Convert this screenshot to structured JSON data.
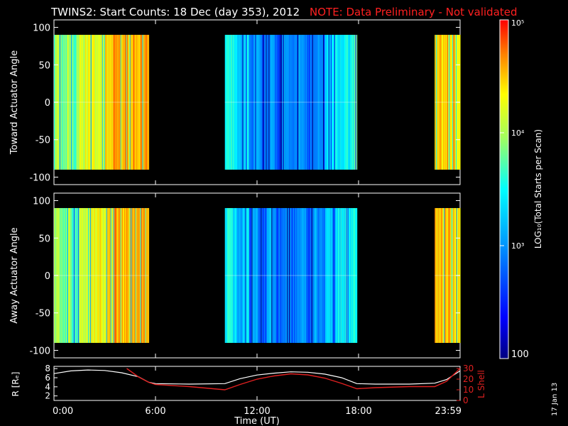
{
  "header": {
    "title": "TWINS2: Start Counts: 18 Dec (day 353), 2012",
    "note": "NOTE: Data Preliminary - Not validated"
  },
  "footer": {
    "date_stamp": "17 Jan 13"
  },
  "colors": {
    "background": "#000000",
    "text": "#ffffff",
    "note": "#ff2020",
    "lshell": "#e02020",
    "radius": "#ffffff"
  },
  "chart_data": [
    {
      "type": "heatmap",
      "ylabel": "Toward Actuator Angle",
      "xlim": [
        0,
        24
      ],
      "ylim": [
        -110,
        110
      ],
      "y_ticks": [
        "-100",
        "-50",
        "0",
        "50",
        "100"
      ],
      "data_windows_ut_hours": [
        [
          0.0,
          5.6
        ],
        [
          10.1,
          17.9
        ],
        [
          22.5,
          24.0
        ]
      ],
      "angle_range": [
        -90,
        90
      ]
    },
    {
      "type": "heatmap",
      "ylabel": "Away Actuator Angle",
      "xlim": [
        0,
        24
      ],
      "ylim": [
        -110,
        110
      ],
      "y_ticks": [
        "-100",
        "-50",
        "0",
        "50",
        "100"
      ],
      "data_windows_ut_hours": [
        [
          0.0,
          5.6
        ],
        [
          10.1,
          17.9
        ],
        [
          22.5,
          24.0
        ]
      ],
      "angle_range": [
        -90,
        90
      ]
    },
    {
      "type": "line",
      "xlabel": "Time (UT)",
      "x_tick_labels": [
        "0:00",
        "6:00",
        "12:00",
        "18:00",
        "23:59"
      ],
      "x_ticks_hours": [
        0,
        6,
        12,
        18,
        24
      ],
      "ylabel_left": "R [Rₑ]",
      "ylabel_right": "L Shell",
      "y_left_ticks": [
        "2",
        "4",
        "6",
        "8"
      ],
      "y_right_ticks": [
        "0",
        "10",
        "20",
        "30"
      ],
      "series": [
        {
          "axis": "left",
          "x": [
            0,
            1,
            2,
            3,
            4,
            5,
            5.6,
            6,
            8,
            10.1,
            11,
            12,
            13,
            14,
            15,
            16,
            17,
            17.9,
            19,
            21,
            22.5,
            23.2,
            24
          ],
          "y": [
            6.9,
            7.5,
            7.7,
            7.6,
            7.1,
            6.2,
            5.0,
            4.7,
            4.6,
            4.7,
            5.8,
            6.6,
            7.0,
            7.3,
            7.2,
            6.8,
            6.0,
            4.7,
            4.6,
            4.6,
            4.8,
            5.6,
            7.5
          ]
        },
        {
          "axis": "right",
          "x": [
            4.3,
            5.0,
            5.6,
            6.0,
            8.0,
            10.1,
            11.0,
            12.0,
            13.0,
            14.0,
            15.0,
            16.0,
            17.0,
            17.9,
            19.0,
            21.0,
            22.5,
            23.2,
            24.0
          ],
          "y": [
            30,
            22,
            17,
            15,
            13,
            10,
            15,
            20,
            23,
            25,
            24,
            21,
            16,
            11,
            12,
            13,
            13,
            18,
            30
          ]
        }
      ]
    },
    {
      "type": "heatmap",
      "ylabel": "LOG₁₀(Total Starts per Scan)",
      "colorbar_labels": [
        "100",
        "10³",
        "10⁴",
        "10⁵"
      ],
      "colorbar_range": [
        2,
        5
      ]
    }
  ]
}
